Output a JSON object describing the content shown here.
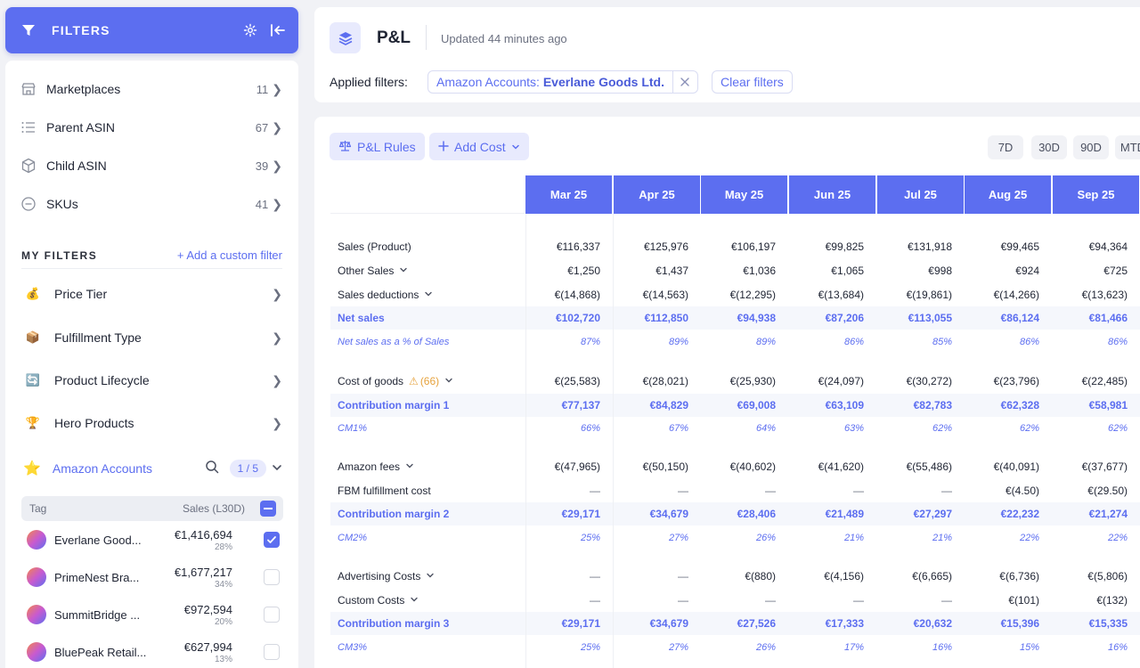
{
  "sidebar": {
    "header": {
      "title": "FILTERS",
      "icons": [
        "filter-icon",
        "gear-icon",
        "collapse-icon"
      ]
    },
    "nav": [
      {
        "label": "Marketplaces",
        "count": "11",
        "icon": "store-icon"
      },
      {
        "label": "Parent ASIN",
        "count": "67",
        "icon": "list-icon"
      },
      {
        "label": "Child ASIN",
        "count": "39",
        "icon": "box-icon"
      },
      {
        "label": "SKUs",
        "count": "41",
        "icon": "minus-circle-icon"
      }
    ],
    "my_filters": {
      "title": "MY FILTERS",
      "add_label": "+ Add a custom filter",
      "items": [
        {
          "label": "Price Tier",
          "emoji": "💰"
        },
        {
          "label": "Fulfillment Type",
          "emoji": "📦"
        },
        {
          "label": "Product Lifecycle",
          "emoji": "🔄"
        },
        {
          "label": "Hero Products",
          "emoji": "🏆"
        }
      ]
    },
    "accounts": {
      "label": "Amazon Accounts",
      "emoji": "⭐",
      "badge": "1 / 5",
      "tag_header": "Tag",
      "sales_header": "Sales (L30D)",
      "rows": [
        {
          "name": "Everlane Good...",
          "sales": "€1,416,694",
          "pct": "28%",
          "checked": true
        },
        {
          "name": "PrimeNest Bra...",
          "sales": "€1,677,217",
          "pct": "34%",
          "checked": false
        },
        {
          "name": "SummitBridge ...",
          "sales": "€972,594",
          "pct": "20%",
          "checked": false
        },
        {
          "name": "BluePeak Retail...",
          "sales": "€627,994",
          "pct": "13%",
          "checked": false
        }
      ]
    }
  },
  "header": {
    "title": "P&L",
    "updated": "Updated 44 minutes ago",
    "applied_label": "Applied filters:",
    "chip_key": "Amazon Accounts:",
    "chip_value": "Everlane Goods Ltd.",
    "clear_label": "Clear filters"
  },
  "toolbar": {
    "rules_label": "P&L Rules",
    "add_cost_label": "Add Cost",
    "periods": [
      "7D",
      "30D",
      "90D",
      "MTD"
    ]
  },
  "table": {
    "columns": [
      "Mar 25",
      "Apr 25",
      "May 25",
      "Jun 25",
      "Jul 25",
      "Aug 25",
      "Sep 25"
    ],
    "rows": [
      {
        "label": "Sales (Product)",
        "kind": "normal",
        "values": [
          "€116,337",
          "€125,976",
          "€106,197",
          "€99,825",
          "€131,918",
          "€99,465",
          "€94,364"
        ]
      },
      {
        "label": "Other Sales",
        "kind": "normal",
        "dropdown": true,
        "values": [
          "€1,250",
          "€1,437",
          "€1,036",
          "€1,065",
          "€998",
          "€924",
          "€725"
        ]
      },
      {
        "label": "Sales deductions",
        "kind": "normal",
        "dropdown": true,
        "values": [
          "€(14,868)",
          "€(14,563)",
          "€(12,295)",
          "€(13,684)",
          "€(19,861)",
          "€(14,266)",
          "€(13,623)"
        ]
      },
      {
        "label": "Net sales",
        "kind": "em",
        "values": [
          "€102,720",
          "€112,850",
          "€94,938",
          "€87,206",
          "€113,055",
          "€86,124",
          "€81,466"
        ]
      },
      {
        "label": "Net sales as a % of Sales",
        "kind": "pct",
        "values": [
          "87%",
          "89%",
          "89%",
          "86%",
          "85%",
          "86%",
          "86%"
        ]
      },
      {
        "label": "Cost of goods",
        "kind": "normal",
        "dropdown": true,
        "warning": "(66)",
        "values": [
          "€(25,583)",
          "€(28,021)",
          "€(25,930)",
          "€(24,097)",
          "€(30,272)",
          "€(23,796)",
          "€(22,485)"
        ]
      },
      {
        "label": "Contribution margin 1",
        "kind": "em",
        "values": [
          "€77,137",
          "€84,829",
          "€69,008",
          "€63,109",
          "€82,783",
          "€62,328",
          "€58,981"
        ]
      },
      {
        "label": "CM1%",
        "kind": "pct",
        "values": [
          "66%",
          "67%",
          "64%",
          "63%",
          "62%",
          "62%",
          "62%"
        ]
      },
      {
        "label": "Amazon fees",
        "kind": "normal",
        "dropdown": true,
        "values": [
          "€(47,965)",
          "€(50,150)",
          "€(40,602)",
          "€(41,620)",
          "€(55,486)",
          "€(40,091)",
          "€(37,677)"
        ]
      },
      {
        "label": "FBM fulfillment cost",
        "kind": "normal",
        "values": [
          "—",
          "—",
          "—",
          "—",
          "—",
          "€(4.50)",
          "€(29.50)"
        ]
      },
      {
        "label": "Contribution margin 2",
        "kind": "em",
        "values": [
          "€29,171",
          "€34,679",
          "€28,406",
          "€21,489",
          "€27,297",
          "€22,232",
          "€21,274"
        ]
      },
      {
        "label": "CM2%",
        "kind": "pct",
        "values": [
          "25%",
          "27%",
          "26%",
          "21%",
          "21%",
          "22%",
          "22%"
        ]
      },
      {
        "label": "Advertising Costs",
        "kind": "normal",
        "dropdown": true,
        "values": [
          "—",
          "—",
          "€(880)",
          "€(4,156)",
          "€(6,665)",
          "€(6,736)",
          "€(5,806)"
        ]
      },
      {
        "label": "Custom Costs",
        "kind": "normal",
        "dropdown": true,
        "values": [
          "—",
          "—",
          "—",
          "—",
          "—",
          "€(101)",
          "€(132)"
        ]
      },
      {
        "label": "Contribution margin 3",
        "kind": "em",
        "values": [
          "€29,171",
          "€34,679",
          "€27,526",
          "€17,333",
          "€20,632",
          "€15,396",
          "€15,335"
        ]
      },
      {
        "label": "CM3%",
        "kind": "pct",
        "values": [
          "25%",
          "27%",
          "26%",
          "17%",
          "16%",
          "15%",
          "16%"
        ]
      }
    ]
  },
  "colors": {
    "accent": "#5c6ef0",
    "accent_light": "#e8eafd",
    "warning": "#e6a23c"
  }
}
